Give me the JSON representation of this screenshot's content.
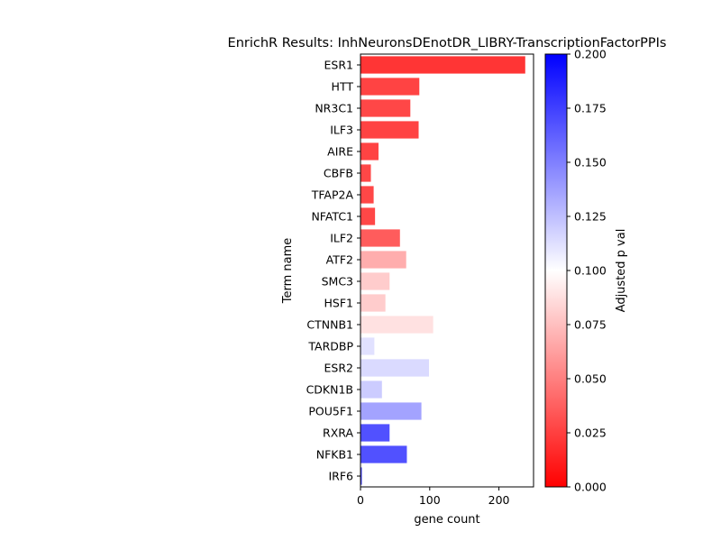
{
  "chart_data": {
    "type": "bar",
    "orientation": "horizontal",
    "title": "EnrichR Results: InhNeuronsDEnotDR_LIBRY-TranscriptionFactorPPIs",
    "xlabel": "gene count",
    "ylabel": "Term name",
    "xlim": [
      0,
      250
    ],
    "x_ticks": [
      "0",
      "100",
      "200"
    ],
    "categories": [
      "ESR1",
      "HTT",
      "NR3C1",
      "ILF3",
      "AIRE",
      "CBFB",
      "TFAP2A",
      "NFATC1",
      "ILF2",
      "ATF2",
      "SMC3",
      "HSF1",
      "CTNNB1",
      "TARDBP",
      "ESR2",
      "CDKN1B",
      "POU5F1",
      "RXRA",
      "NFKB1",
      "IRF6"
    ],
    "values": [
      238,
      85,
      72,
      84,
      26,
      15,
      19,
      21,
      57,
      66,
      42,
      36,
      105,
      20,
      99,
      31,
      88,
      42,
      67,
      2
    ],
    "adjusted_p": [
      0.001,
      0.008,
      0.01,
      0.008,
      0.008,
      0.01,
      0.01,
      0.01,
      0.02,
      0.06,
      0.075,
      0.075,
      0.085,
      0.115,
      0.118,
      0.125,
      0.145,
      0.185,
      0.185,
      0.19
    ],
    "colorbar": {
      "label": "Adjusted p val",
      "range": [
        0.0,
        0.2
      ],
      "ticks": [
        "0.000",
        "0.025",
        "0.050",
        "0.075",
        "0.100",
        "0.125",
        "0.150",
        "0.175",
        "0.200"
      ],
      "colormap": "bwr_r",
      "colors": {
        "low": "#ff0000",
        "mid": "#ffffff",
        "high": "#0000ff"
      }
    },
    "grid": false
  }
}
